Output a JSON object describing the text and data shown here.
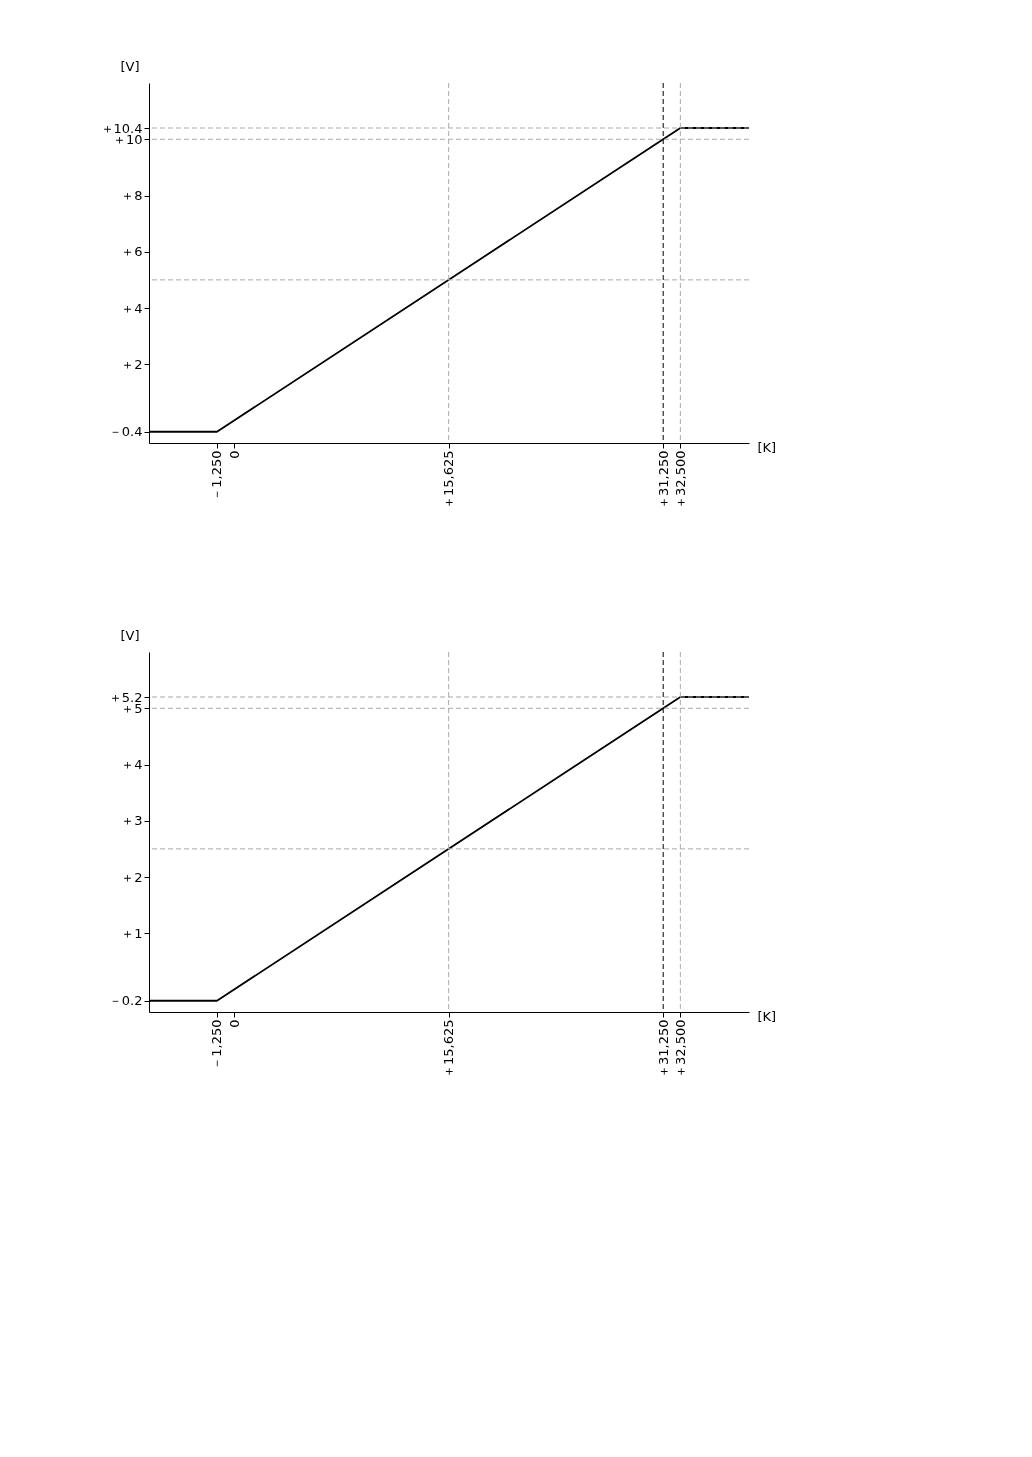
{
  "chart_data": [
    {
      "type": "line",
      "xlabel": "[K]",
      "ylabel": "[V]",
      "grid": false,
      "marker": "none",
      "line_style": "solid",
      "x": [
        -6200,
        -1250,
        32500,
        37500
      ],
      "series": [
        {
          "color": "#000000",
          "values": [
            -0.4,
            -0.4,
            10.4,
            10.4
          ]
        }
      ],
      "xlim": [
        -6200,
        37500
      ],
      "ylim": [
        -0.8,
        12
      ],
      "xticks": [
        {
          "value": -1250,
          "label": "－1,250"
        },
        0,
        {
          "value": 15625,
          "label": "＋15,625"
        },
        {
          "value": 31250,
          "label": "＋31,250"
        },
        {
          "value": 32500,
          "label": "＋32,500"
        }
      ],
      "yticks": [
        {
          "value": -0.4,
          "label": "－0.4"
        },
        {
          "value": 2,
          "label": "＋2"
        },
        {
          "value": 4,
          "label": "＋4"
        },
        {
          "value": 6,
          "label": "＋6"
        },
        {
          "value": 8,
          "label": "＋8"
        },
        {
          "value": 10,
          "label": "＋10"
        },
        {
          "value": 10.4,
          "label": "＋10.4"
        }
      ],
      "ref_lines": [
        {
          "axis": "x",
          "value": 15625,
          "color": "#aaaaaa",
          "line_style": "dashed"
        },
        {
          "axis": "x",
          "value": 31250,
          "color": "#000000",
          "line_style": "dashed"
        },
        {
          "axis": "x",
          "value": 32500,
          "color": "#aaaaaa",
          "line_style": "dashed"
        },
        {
          "axis": "y",
          "value": 5,
          "color": "#aaaaaa",
          "line_style": "dashed"
        },
        {
          "axis": "y",
          "value": 10,
          "color": "#aaaaaa",
          "line_style": "dashed"
        },
        {
          "axis": "y",
          "value": 10.4,
          "color": "#aaaaaa",
          "line_style": "dashed"
        }
      ]
    },
    {
      "type": "line",
      "xlabel": "[K]",
      "ylabel": "[V]",
      "grid": false,
      "marker": "none",
      "line_style": "solid",
      "x": [
        -6200,
        -1250,
        32500,
        37500
      ],
      "series": [
        {
          "color": "#000000",
          "values": [
            -0.2,
            -0.2,
            5.2,
            5.2
          ]
        }
      ],
      "xlim": [
        -6200,
        37500
      ],
      "ylim": [
        -0.4,
        6
      ],
      "xticks": [
        {
          "value": -1250,
          "label": "－1,250"
        },
        0,
        {
          "value": 15625,
          "label": "＋15,625"
        },
        {
          "value": 31250,
          "label": "＋31,250"
        },
        {
          "value": 32500,
          "label": "＋32,500"
        }
      ],
      "yticks": [
        {
          "value": -0.2,
          "label": "－0.2"
        },
        {
          "value": 1,
          "label": "＋1"
        },
        {
          "value": 2,
          "label": "＋2"
        },
        {
          "value": 3,
          "label": "＋3"
        },
        {
          "value": 4,
          "label": "＋4"
        },
        {
          "value": 5,
          "label": "＋5"
        },
        {
          "value": 5.2,
          "label": "＋5.2"
        }
      ],
      "ref_lines": [
        {
          "axis": "x",
          "value": 15625,
          "color": "#aaaaaa",
          "line_style": "dashed"
        },
        {
          "axis": "x",
          "value": 31250,
          "color": "#000000",
          "line_style": "dashed"
        },
        {
          "axis": "x",
          "value": 32500,
          "color": "#aaaaaa",
          "line_style": "dashed"
        },
        {
          "axis": "y",
          "value": 2.5,
          "color": "#aaaaaa",
          "line_style": "dashed"
        },
        {
          "axis": "y",
          "value": 5,
          "color": "#aaaaaa",
          "line_style": "dashed"
        },
        {
          "axis": "y",
          "value": 5.2,
          "color": "#aaaaaa",
          "line_style": "dashed"
        }
      ]
    }
  ]
}
